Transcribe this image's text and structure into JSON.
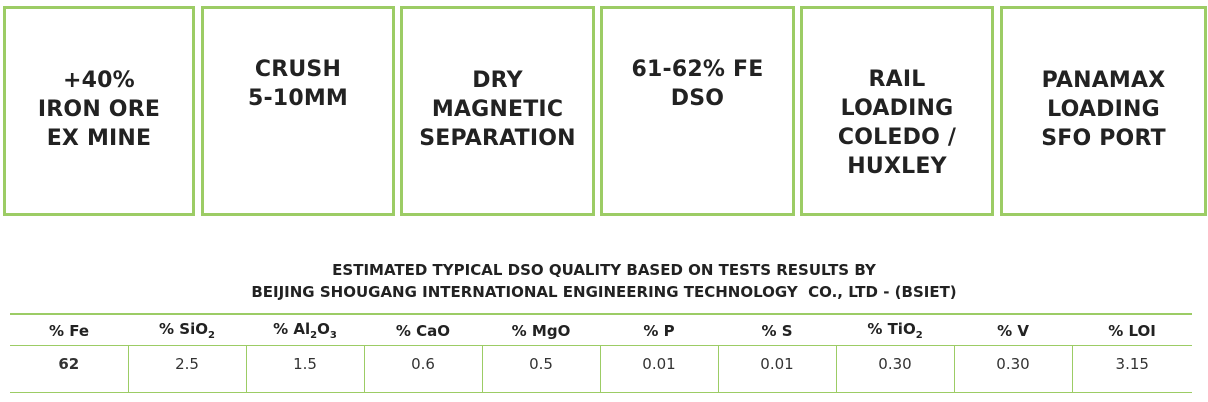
{
  "process_steps": [
    {
      "label": "+40%\nIRON ORE\nEX MINE"
    },
    {
      "label": "CRUSH\n5-10MM"
    },
    {
      "label": "DRY\nMAGNETIC\nSEPARATION"
    },
    {
      "label": "61-62% FE\nDSO"
    },
    {
      "label": "RAIL\nLOADING\nCOLEDO /\nHUXLEY"
    },
    {
      "label": "PANAMAX\nLOADING\nSFO PORT"
    }
  ],
  "caption": {
    "line1": "ESTIMATED TYPICAL DSO QUALITY BASED ON TESTS RESULTS BY",
    "line2": "BEIJING SHOUGANG INTERNATIONAL ENGINEERING TECHNOLOGY  CO., LTD - (BSIET)"
  },
  "table": {
    "headers": [
      {
        "pre": "% Fe",
        "sub": "",
        "post": ""
      },
      {
        "pre": "% SiO",
        "sub": "2",
        "post": ""
      },
      {
        "pre": "% Al",
        "sub": "2",
        "post": "O"
      },
      {
        "pre": "% CaO",
        "sub": "",
        "post": ""
      },
      {
        "pre": "% MgO",
        "sub": "",
        "post": ""
      },
      {
        "pre": "% P",
        "sub": "",
        "post": ""
      },
      {
        "pre": "% S",
        "sub": "",
        "post": ""
      },
      {
        "pre": "% TiO",
        "sub": "2",
        "post": ""
      },
      {
        "pre": "% V",
        "sub": "",
        "post": ""
      },
      {
        "pre": "% LOI",
        "sub": "",
        "post": ""
      }
    ],
    "al2o3_sub2": "3",
    "values": [
      "62",
      "2.5",
      "1.5",
      "0.6",
      "0.5",
      "0.01",
      "0.01",
      "0.30",
      "0.30",
      "3.15"
    ]
  },
  "colors": {
    "border_green": "#9ccc65",
    "text_dark": "#222222"
  }
}
